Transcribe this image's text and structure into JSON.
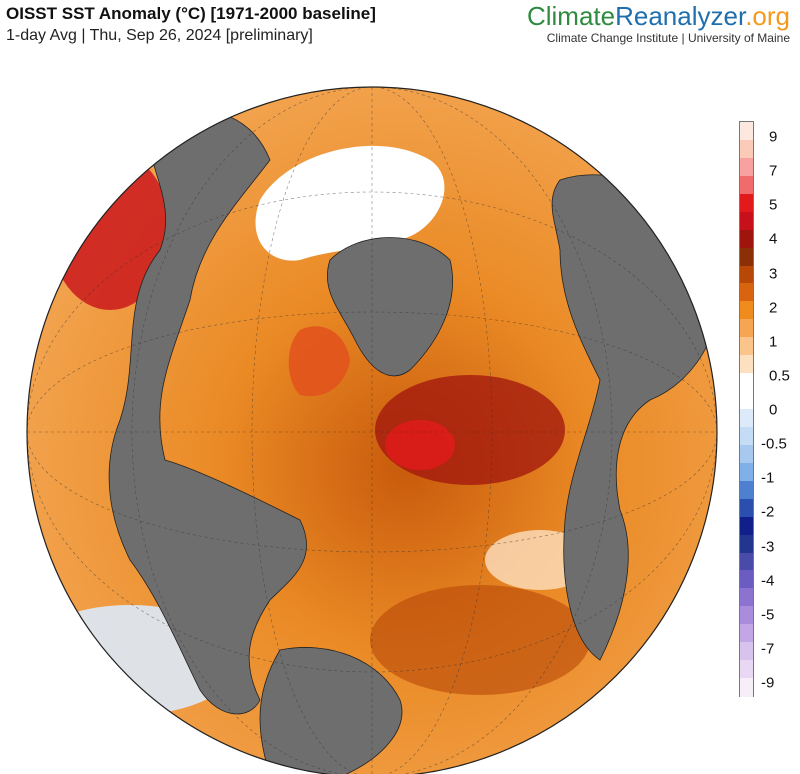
{
  "header": {
    "title": "OISST SST Anomaly (°C) [1971-2000 baseline]",
    "subtitle": "1-day Avg | Thu, Sep 26, 2024 [preliminary]"
  },
  "brand": {
    "logo_part1": "Climate",
    "logo_part2": "Reanalyzer",
    "logo_part3": ".org",
    "tagline": "Climate Change Institute | University of Maine"
  },
  "map": {
    "projection": "orthographic",
    "land_color": "#6e6e6e",
    "ice_color": "#ffffff",
    "dominant_anomaly_color": "#f08c1e"
  },
  "colorbar": {
    "labels": [
      "9",
      "7",
      "5",
      "4",
      "3",
      "2",
      "1",
      "0.5",
      "0",
      "-0.5",
      "-1",
      "-2",
      "-3",
      "-4",
      "-5",
      "-7",
      "-9"
    ],
    "colors": [
      "#fde8e0",
      "#fbcbb8",
      "#f7a1a1",
      "#f06b6b",
      "#e31a1c",
      "#c8101a",
      "#a0140e",
      "#8b2f06",
      "#b84808",
      "#d96410",
      "#f08c1e",
      "#f6a552",
      "#fbc48a",
      "#fde0c0",
      "#ffffff",
      "#ffffff",
      "#dceafa",
      "#c4dcf6",
      "#a7c9ef",
      "#7fb0e8",
      "#4f7fcf",
      "#2a4fae",
      "#101f8a",
      "#22358f",
      "#4a4aa8",
      "#6a5cc0",
      "#8b73cf",
      "#a98cdc",
      "#c3a6e6",
      "#d8c2ee",
      "#e8d8f4",
      "#f6eef9"
    ]
  }
}
